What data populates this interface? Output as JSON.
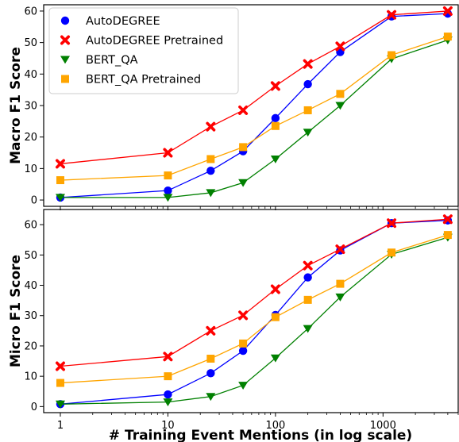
{
  "chart_data": [
    {
      "type": "line",
      "xscale": "log",
      "x": [
        1,
        10,
        25,
        50,
        100,
        200,
        400,
        1200,
        4000
      ],
      "xlim": [
        0.7,
        5000
      ],
      "ylim": [
        -2,
        62
      ],
      "yticks": [
        0,
        10,
        20,
        30,
        40,
        50,
        60
      ],
      "ylabel": "Macro F1 Score",
      "grid": false,
      "legend": "top-left",
      "series": [
        {
          "name": "AutoDEGREE",
          "color": "#0000ff",
          "marker": "circle",
          "values": [
            0.8,
            3,
            9.3,
            15.5,
            26,
            36.8,
            47,
            58.3,
            59.2
          ]
        },
        {
          "name": "AutoDEGREE Pretrained",
          "color": "#ff0000",
          "marker": "x",
          "values": [
            11.5,
            15,
            23.3,
            28.5,
            36.2,
            43.2,
            48.8,
            58.8,
            60
          ]
        },
        {
          "name": "BERT_QA",
          "color": "#008000",
          "marker": "triangle-down",
          "values": [
            0.8,
            0.8,
            2.3,
            5.5,
            13,
            21.5,
            30,
            44.8,
            50.8
          ]
        },
        {
          "name": "BERT_QA Pretrained",
          "color": "#ffa500",
          "marker": "square",
          "values": [
            6.3,
            7.8,
            13,
            16.8,
            23.5,
            28.5,
            33.7,
            46,
            51.9
          ]
        }
      ]
    },
    {
      "type": "line",
      "xscale": "log",
      "x": [
        1,
        10,
        25,
        50,
        100,
        200,
        400,
        1200,
        4000
      ],
      "xticks": [
        1,
        10,
        100,
        1000
      ],
      "xlim": [
        0.7,
        5000
      ],
      "ylim": [
        -2,
        65
      ],
      "yticks": [
        0,
        10,
        20,
        30,
        40,
        50,
        60
      ],
      "xlabel": "# Training Event Mentions (in log scale)",
      "ylabel": "Micro F1 Score",
      "grid": false,
      "series": [
        {
          "name": "AutoDEGREE",
          "color": "#0000ff",
          "marker": "circle",
          "values": [
            0.8,
            4,
            11,
            18.4,
            30.2,
            42.6,
            51.5,
            60.5,
            61.4
          ]
        },
        {
          "name": "AutoDEGREE Pretrained",
          "color": "#ff0000",
          "marker": "x",
          "values": [
            13.3,
            16.5,
            25,
            30.1,
            38.7,
            46.5,
            51.9,
            60.5,
            61.8
          ]
        },
        {
          "name": "BERT_QA",
          "color": "#008000",
          "marker": "triangle-down",
          "values": [
            0.8,
            1.5,
            3.3,
            7,
            16,
            25.7,
            36.1,
            50.2,
            55.8
          ]
        },
        {
          "name": "BERT_QA Pretrained",
          "color": "#ffa500",
          "marker": "square",
          "values": [
            7.8,
            10,
            15.8,
            20.8,
            29.5,
            35.2,
            40.5,
            50.8,
            56.6
          ]
        }
      ]
    }
  ]
}
